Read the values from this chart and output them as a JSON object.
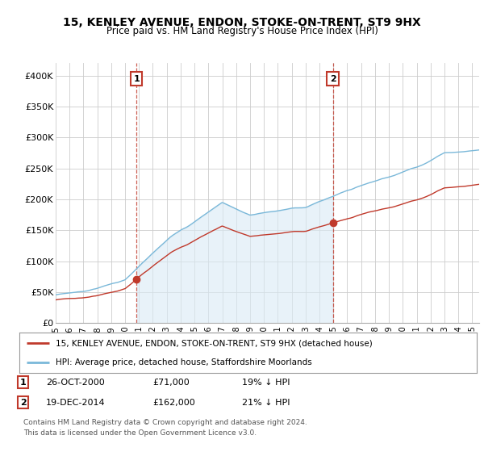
{
  "title": "15, KENLEY AVENUE, ENDON, STOKE-ON-TRENT, ST9 9HX",
  "subtitle": "Price paid vs. HM Land Registry's House Price Index (HPI)",
  "ylabel_ticks": [
    "£0",
    "£50K",
    "£100K",
    "£150K",
    "£200K",
    "£250K",
    "£300K",
    "£350K",
    "£400K"
  ],
  "ytick_values": [
    0,
    50000,
    100000,
    150000,
    200000,
    250000,
    300000,
    350000,
    400000
  ],
  "ylim": [
    0,
    420000
  ],
  "xlim_start": 1995.0,
  "xlim_end": 2025.5,
  "hpi_color": "#7ab8d9",
  "hpi_fill_color": "#daeaf5",
  "price_color": "#c0392b",
  "sale1_date": 2000.82,
  "sale1_value": 71000,
  "sale2_date": 2014.96,
  "sale2_value": 162000,
  "legend_line1": "15, KENLEY AVENUE, ENDON, STOKE-ON-TRENT, ST9 9HX (detached house)",
  "legend_line2": "HPI: Average price, detached house, Staffordshire Moorlands",
  "footnote1": "Contains HM Land Registry data © Crown copyright and database right 2024.",
  "footnote2": "This data is licensed under the Open Government Licence v3.0.",
  "background_color": "#ffffff",
  "grid_color": "#cccccc"
}
